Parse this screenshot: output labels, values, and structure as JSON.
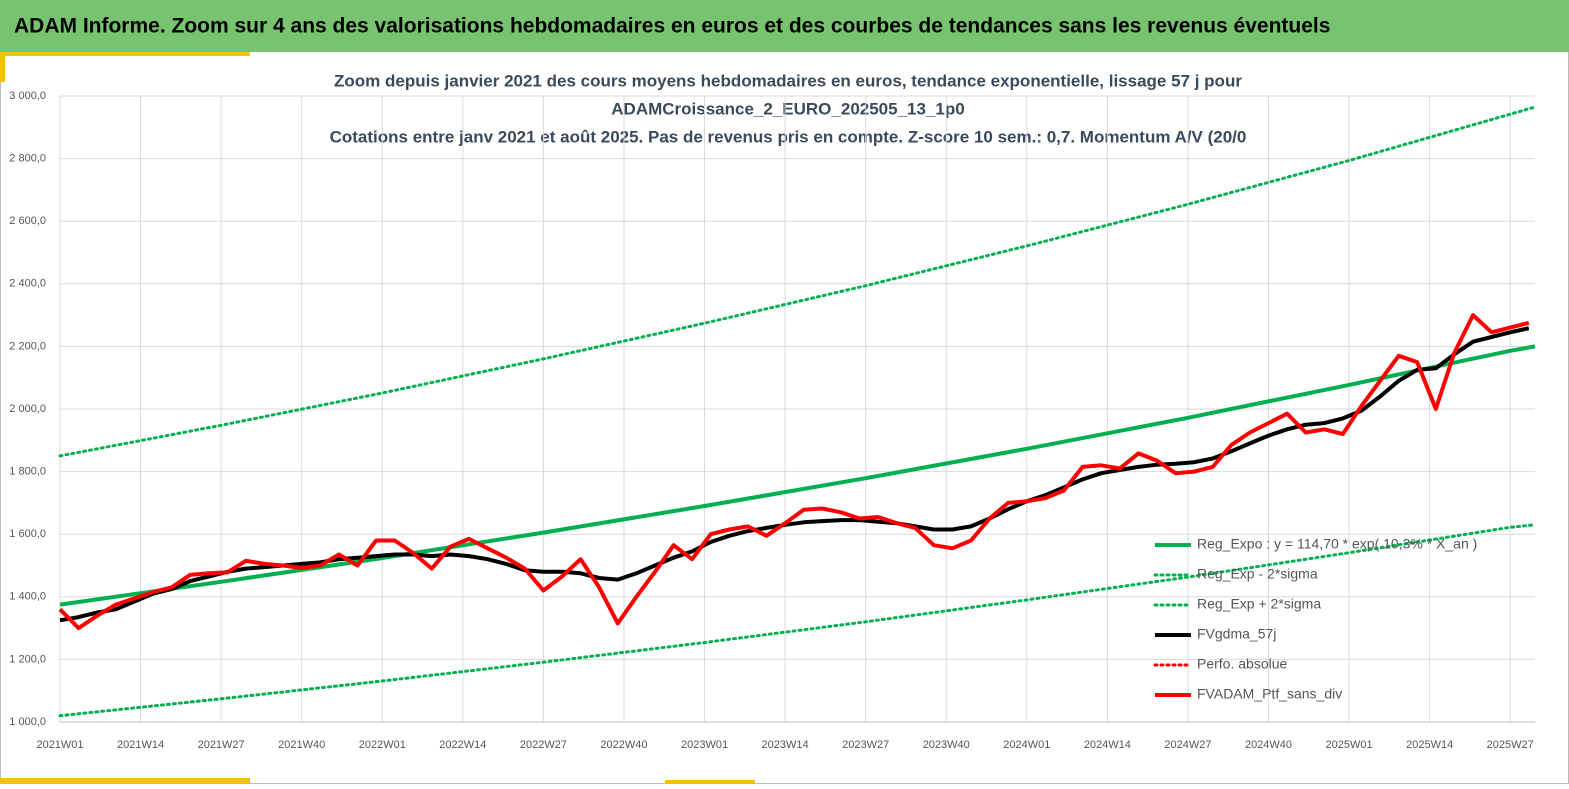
{
  "header": {
    "title": "ADAM Informe. Zoom sur 4 ans des valorisations hebdomadaires en euros et des courbes de tendances sans les revenus éventuels"
  },
  "chart_data": {
    "type": "line",
    "title_lines": [
      "Zoom depuis janvier 2021 des cours moyens hebdomadaires  en euros, tendance exponentielle, lissage 57 j pour",
      "ADAMCroissance_2_EURO_202505_13_1p0",
      "Cotations entre janv 2021 et août 2025. Pas de revenus pris en compte. Z-score 10 sem.: 0,7. Momentum A/V (20/0"
    ],
    "xlim": [
      0,
      238
    ],
    "xticks": [
      {
        "value": 0,
        "label": "2021W01"
      },
      {
        "value": 13,
        "label": "2021W14"
      },
      {
        "value": 26,
        "label": "2021W27"
      },
      {
        "value": 39,
        "label": "2021W40"
      },
      {
        "value": 52,
        "label": "2022W01"
      },
      {
        "value": 65,
        "label": "2022W14"
      },
      {
        "value": 78,
        "label": "2022W27"
      },
      {
        "value": 91,
        "label": "2022W40"
      },
      {
        "value": 104,
        "label": "2023W01"
      },
      {
        "value": 117,
        "label": "2023W14"
      },
      {
        "value": 130,
        "label": "2023W27"
      },
      {
        "value": 143,
        "label": "2023W40"
      },
      {
        "value": 156,
        "label": "2024W01"
      },
      {
        "value": 169,
        "label": "2024W14"
      },
      {
        "value": 182,
        "label": "2024W27"
      },
      {
        "value": 195,
        "label": "2024W40"
      },
      {
        "value": 208,
        "label": "2025W01"
      },
      {
        "value": 221,
        "label": "2025W14"
      },
      {
        "value": 234,
        "label": "2025W27"
      }
    ],
    "ylim": [
      1000,
      3000
    ],
    "yticks": [
      {
        "value": 1000,
        "label": "1 000,0"
      },
      {
        "value": 1200,
        "label": "1 200,0"
      },
      {
        "value": 1400,
        "label": "1 400,0"
      },
      {
        "value": 1600,
        "label": "1 600,0"
      },
      {
        "value": 1800,
        "label": "1 800,0"
      },
      {
        "value": 2000,
        "label": "2 000,0"
      },
      {
        "value": 2200,
        "label": "2 200,0"
      },
      {
        "value": 2400,
        "label": "2 400,0"
      },
      {
        "value": 2600,
        "label": "2 600,0"
      },
      {
        "value": 2800,
        "label": "2 800,0"
      },
      {
        "value": 3000,
        "label": "3 000,0"
      }
    ],
    "grid": true,
    "legend": "lower right",
    "x": [
      0,
      3,
      6,
      9,
      12,
      15,
      18,
      21,
      24,
      27,
      30,
      33,
      36,
      39,
      42,
      45,
      48,
      51,
      54,
      57,
      60,
      63,
      66,
      69,
      72,
      75,
      78,
      81,
      84,
      87,
      90,
      93,
      96,
      99,
      102,
      105,
      108,
      111,
      114,
      117,
      120,
      123,
      126,
      129,
      132,
      135,
      138,
      141,
      144,
      147,
      150,
      153,
      156,
      159,
      162,
      165,
      168,
      171,
      174,
      177,
      180,
      183,
      186,
      189,
      192,
      195,
      198,
      201,
      204,
      207,
      210,
      213,
      216,
      219,
      222,
      225,
      228,
      231,
      234,
      237
    ],
    "series": [
      {
        "name": "Reg_Expo : y = 114,70 * exp( 10,3% *  X_an )",
        "color": "#00b050",
        "dash": "solid",
        "x": [
          0,
          26,
          52,
          78,
          104,
          130,
          156,
          182,
          208,
          234,
          238
        ],
        "values": [
          1375,
          1448,
          1524,
          1605,
          1690,
          1779,
          1873,
          1972,
          2077,
          2186,
          2200
        ]
      },
      {
        "name": "Reg_Exp - 2*sigma",
        "color": "#00b050",
        "dash": "dotted",
        "x": [
          0,
          26,
          52,
          78,
          104,
          130,
          156,
          182,
          208,
          234,
          238
        ],
        "values": [
          1020,
          1074,
          1131,
          1191,
          1254,
          1320,
          1390,
          1463,
          1541,
          1622,
          1630
        ]
      },
      {
        "name": "Reg_Exp + 2*sigma",
        "color": "#00b050",
        "dash": "dotted",
        "x": [
          0,
          26,
          52,
          78,
          104,
          130,
          156,
          182,
          208,
          234,
          238
        ],
        "values": [
          1850,
          1948,
          2051,
          2160,
          2274,
          2394,
          2521,
          2654,
          2794,
          2942,
          2965
        ]
      },
      {
        "name": "FVgdma_57j",
        "color": "#000000",
        "dash": "solid",
        "values": [
          1325,
          1335,
          1350,
          1360,
          1385,
          1410,
          1425,
          1450,
          1465,
          1480,
          1490,
          1495,
          1500,
          1505,
          1510,
          1520,
          1525,
          1530,
          1535,
          1535,
          1530,
          1535,
          1530,
          1520,
          1505,
          1485,
          1480,
          1480,
          1475,
          1460,
          1455,
          1475,
          1500,
          1525,
          1545,
          1575,
          1595,
          1610,
          1620,
          1630,
          1638,
          1642,
          1645,
          1645,
          1640,
          1635,
          1625,
          1615,
          1615,
          1625,
          1650,
          1680,
          1705,
          1725,
          1750,
          1775,
          1795,
          1805,
          1815,
          1822,
          1825,
          1830,
          1842,
          1865,
          1890,
          1915,
          1935,
          1950,
          1955,
          1970,
          1995,
          2040,
          2090,
          2125,
          2130,
          2175,
          2215,
          2230,
          2245,
          2258
        ]
      },
      {
        "name": "Perfo. absolue",
        "color": "#ff0000",
        "dash": "dotted",
        "x": [],
        "values": []
      },
      {
        "name": "FVADAM_Ptf_sans_div",
        "color": "#ff0000",
        "dash": "solid",
        "values": [
          1360,
          1300,
          1340,
          1375,
          1395,
          1415,
          1430,
          1470,
          1475,
          1478,
          1515,
          1505,
          1500,
          1492,
          1500,
          1535,
          1500,
          1580,
          1580,
          1540,
          1490,
          1560,
          1585,
          1555,
          1525,
          1490,
          1420,
          1465,
          1520,
          1430,
          1315,
          1400,
          1480,
          1565,
          1520,
          1600,
          1615,
          1625,
          1595,
          1635,
          1678,
          1682,
          1670,
          1650,
          1655,
          1635,
          1620,
          1565,
          1555,
          1580,
          1650,
          1700,
          1705,
          1715,
          1740,
          1815,
          1820,
          1810,
          1858,
          1835,
          1795,
          1800,
          1815,
          1885,
          1925,
          1955,
          1985,
          1925,
          1935,
          1920,
          2010,
          2090,
          2170,
          2150,
          2000,
          2180,
          2300,
          2245,
          2260,
          2275
        ]
      }
    ]
  }
}
